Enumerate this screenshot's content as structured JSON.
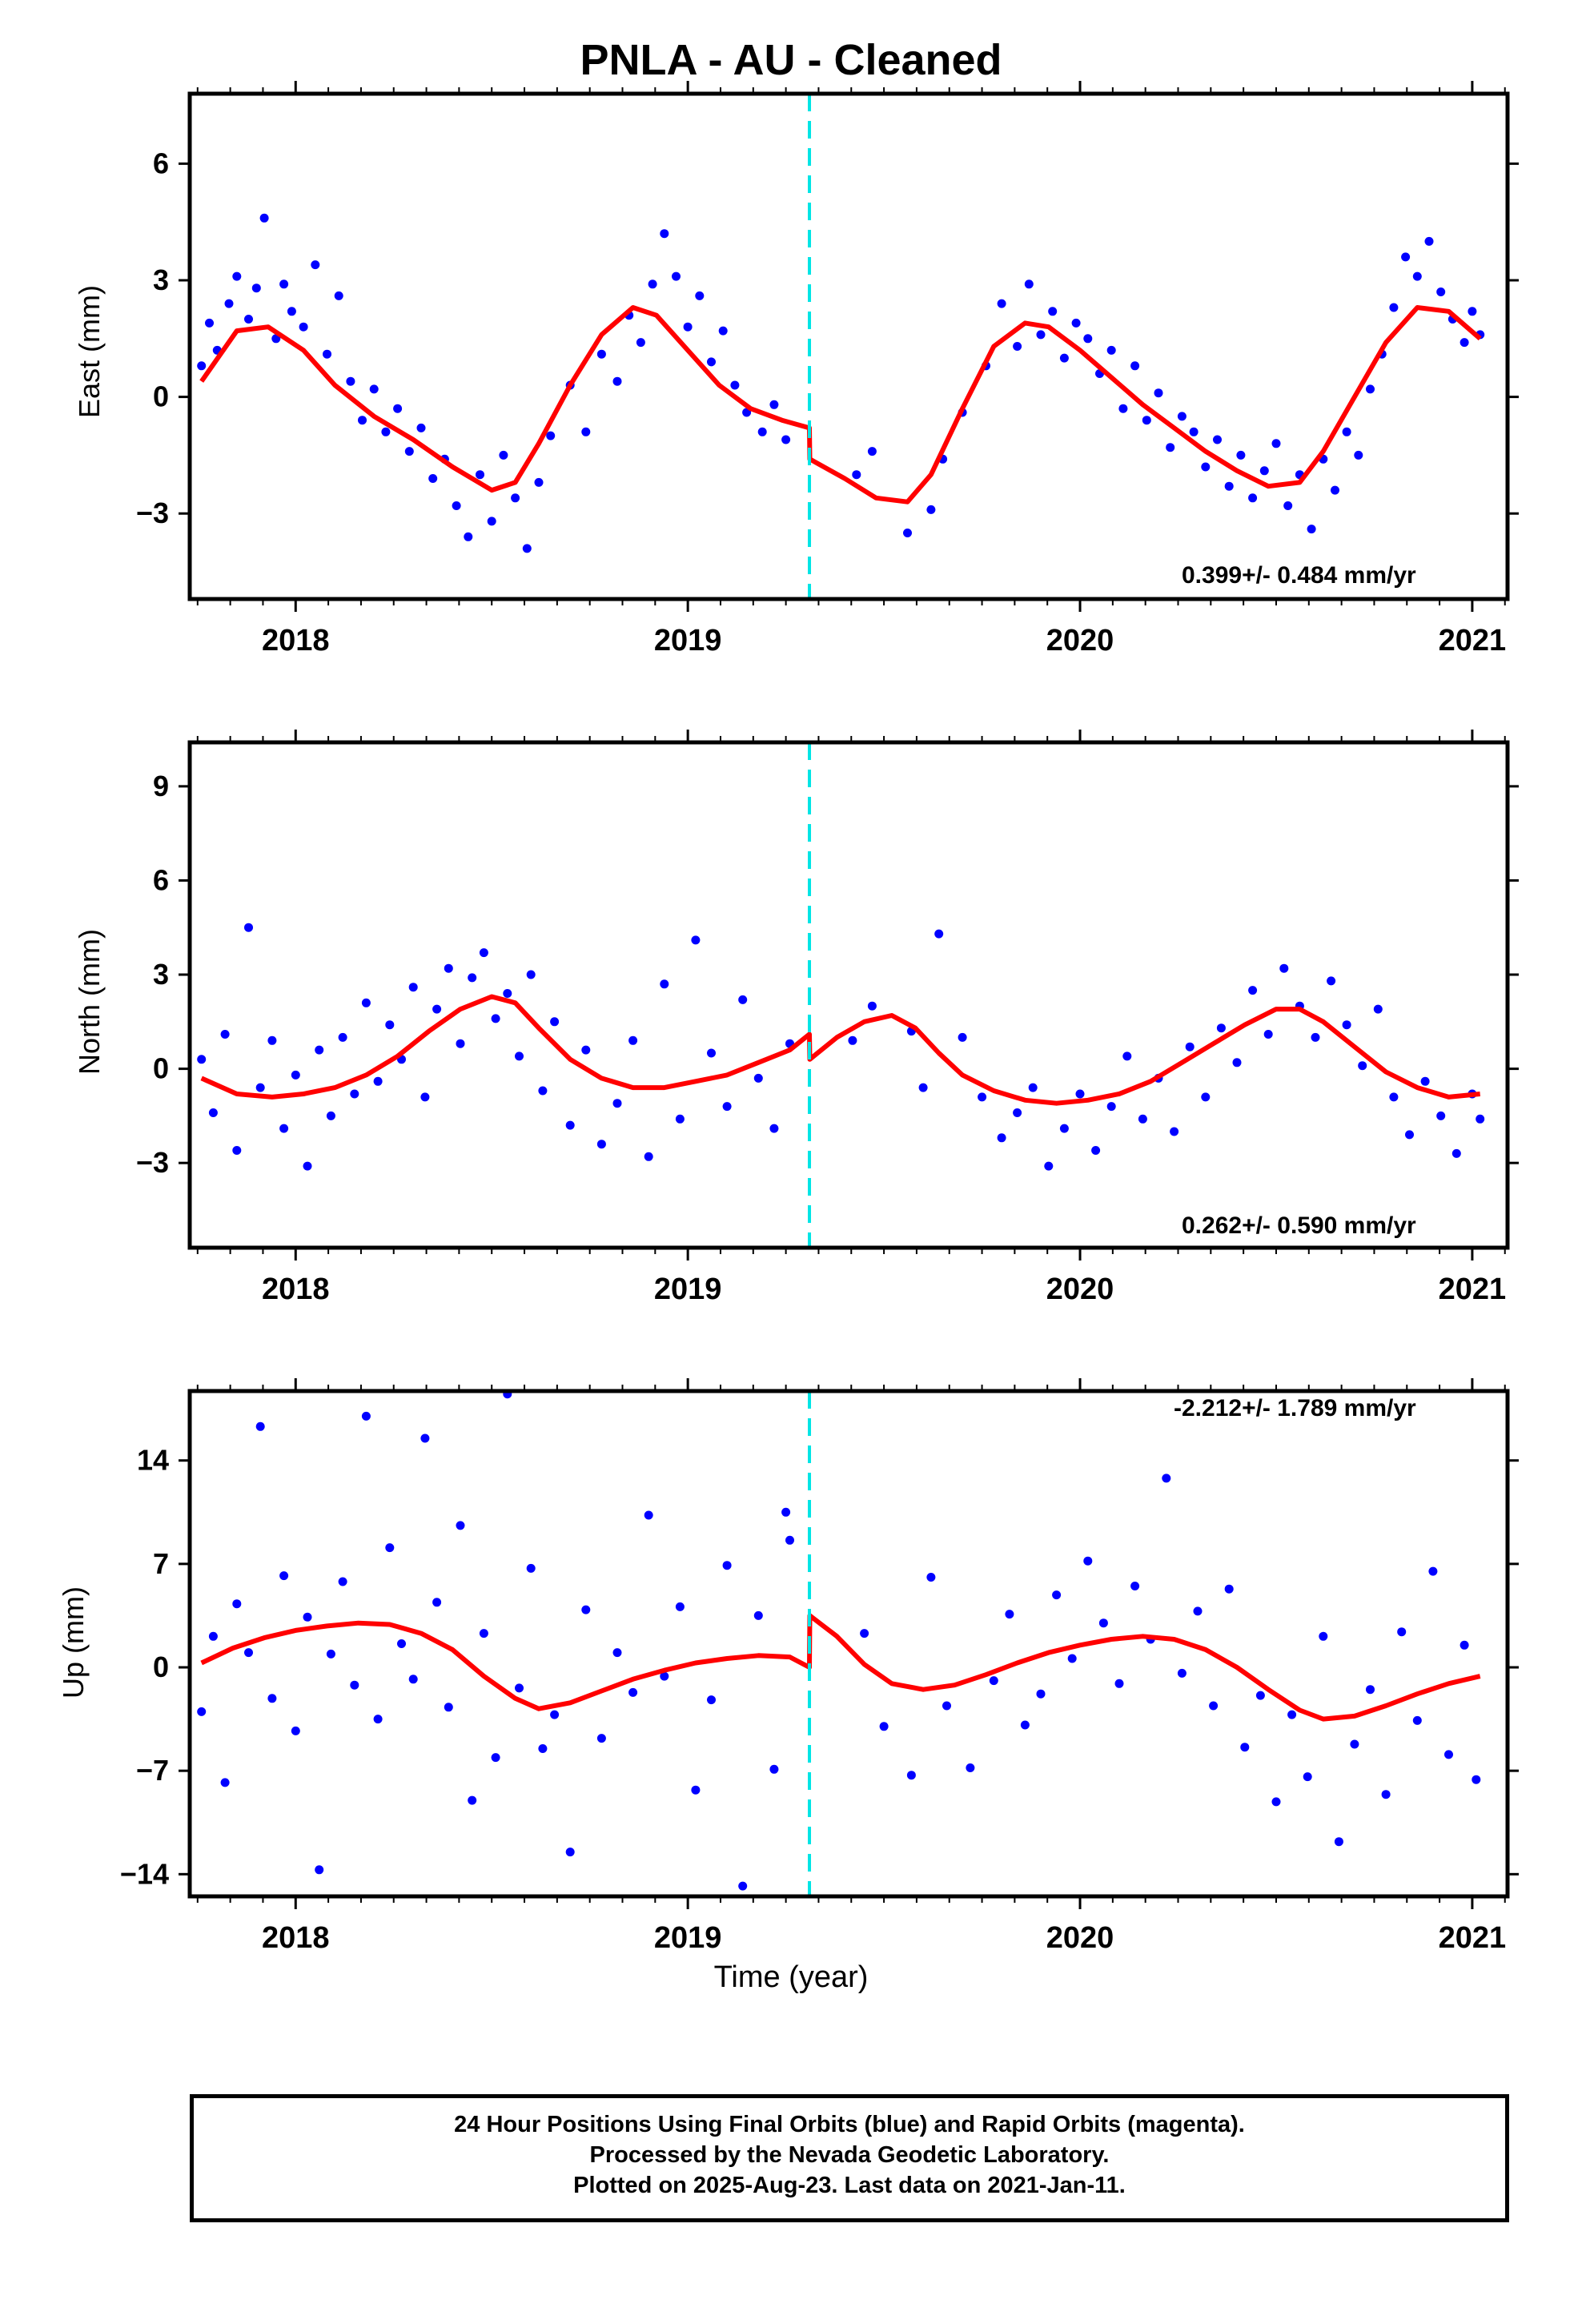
{
  "title": "PNLA  - AU - Cleaned",
  "xlabel": "Time (year)",
  "footer": {
    "line1": "24 Hour Positions Using Final Orbits (blue) and Rapid Orbits (magenta).",
    "line2": "Processed by the Nevada Geodetic Laboratory.",
    "line3": "Plotted on 2025-Aug-23. Last data on 2021-Jan-11."
  },
  "colors": {
    "final_orbits": "#0000ff",
    "model": "#ff0000",
    "equipment_change": "#00e5e5",
    "frame": "#000000"
  },
  "chart_data": [
    {
      "type": "scatter",
      "component": "east",
      "ylabel": "East (mm)",
      "rate_text": "0.399+/- 0.484 mm/yr",
      "rate_position": "bottom-right",
      "xlim": [
        2017.73,
        2021.09
      ],
      "ylim": [
        -5.2,
        7.8
      ],
      "yticks": [
        -3,
        0,
        3,
        6
      ],
      "ytick_labels": [
        "−3",
        "0",
        "3",
        "6"
      ],
      "xticks": [
        2018,
        2019,
        2020,
        2021
      ],
      "xtick_labels": [
        "2018",
        "2019",
        "2020",
        "2021"
      ],
      "break_epoch": 2019.31,
      "grid": false,
      "series": [
        {
          "name": "Final Orbits",
          "color": "#0000ff",
          "marker": "dot",
          "x": [
            2017.76,
            2017.78,
            2017.8,
            2017.83,
            2017.85,
            2017.88,
            2017.9,
            2017.92,
            2017.95,
            2017.97,
            2017.99,
            2018.02,
            2018.05,
            2018.08,
            2018.11,
            2018.14,
            2018.17,
            2018.2,
            2018.23,
            2018.26,
            2018.29,
            2018.32,
            2018.35,
            2018.38,
            2018.41,
            2018.44,
            2018.47,
            2018.5,
            2018.53,
            2018.56,
            2018.59,
            2018.62,
            2018.65,
            2018.7,
            2018.74,
            2018.78,
            2018.82,
            2018.85,
            2018.88,
            2018.91,
            2018.94,
            2018.97,
            2019.0,
            2019.03,
            2019.06,
            2019.09,
            2019.12,
            2019.15,
            2019.19,
            2019.22,
            2019.25,
            2019.43,
            2019.47,
            2019.56,
            2019.62,
            2019.65,
            2019.7,
            2019.76,
            2019.8,
            2019.84,
            2019.87,
            2019.9,
            2019.93,
            2019.96,
            2019.99,
            2020.02,
            2020.05,
            2020.08,
            2020.11,
            2020.14,
            2020.17,
            2020.2,
            2020.23,
            2020.26,
            2020.29,
            2020.32,
            2020.35,
            2020.38,
            2020.41,
            2020.44,
            2020.47,
            2020.5,
            2020.53,
            2020.56,
            2020.59,
            2020.62,
            2020.65,
            2020.68,
            2020.71,
            2020.74,
            2020.77,
            2020.8,
            2020.83,
            2020.86,
            2020.89,
            2020.92,
            2020.95,
            2020.98,
            2021.0,
            2021.02
          ],
          "y": [
            0.8,
            1.9,
            1.2,
            2.4,
            3.1,
            2.0,
            2.8,
            4.6,
            1.5,
            2.9,
            2.2,
            1.8,
            3.4,
            1.1,
            2.6,
            0.4,
            -0.6,
            0.2,
            -0.9,
            -0.3,
            -1.4,
            -0.8,
            -2.1,
            -1.6,
            -2.8,
            -3.6,
            -2.0,
            -3.2,
            -1.5,
            -2.6,
            -3.9,
            -2.2,
            -1.0,
            0.3,
            -0.9,
            1.1,
            0.4,
            2.1,
            1.4,
            2.9,
            4.2,
            3.1,
            1.8,
            2.6,
            0.9,
            1.7,
            0.3,
            -0.4,
            -0.9,
            -0.2,
            -1.1,
            -2.0,
            -1.4,
            -3.5,
            -2.9,
            -1.6,
            -0.4,
            0.8,
            2.4,
            1.3,
            2.9,
            1.6,
            2.2,
            1.0,
            1.9,
            1.5,
            0.6,
            1.2,
            -0.3,
            0.8,
            -0.6,
            0.1,
            -1.3,
            -0.5,
            -0.9,
            -1.8,
            -1.1,
            -2.3,
            -1.5,
            -2.6,
            -1.9,
            -1.2,
            -2.8,
            -2.0,
            -3.4,
            -1.6,
            -2.4,
            -0.9,
            -1.5,
            0.2,
            1.1,
            2.3,
            3.6,
            3.1,
            4.0,
            2.7,
            2.0,
            1.4,
            2.2,
            1.6
          ]
        }
      ],
      "model": {
        "name": "Model",
        "color": "#ff0000",
        "x": [
          2017.76,
          2017.85,
          2017.93,
          2018.02,
          2018.1,
          2018.2,
          2018.3,
          2018.4,
          2018.5,
          2018.56,
          2018.62,
          2018.7,
          2018.78,
          2018.86,
          2018.92,
          2019.0,
          2019.08,
          2019.16,
          2019.24,
          2019.31,
          2019.311,
          2019.4,
          2019.48,
          2019.56,
          2019.62,
          2019.7,
          2019.78,
          2019.86,
          2019.92,
          2020.0,
          2020.08,
          2020.16,
          2020.24,
          2020.32,
          2020.4,
          2020.48,
          2020.56,
          2020.62,
          2020.7,
          2020.78,
          2020.86,
          2020.94,
          2021.02
        ],
        "y": [
          0.4,
          1.7,
          1.8,
          1.2,
          0.3,
          -0.5,
          -1.1,
          -1.8,
          -2.4,
          -2.2,
          -1.2,
          0.3,
          1.6,
          2.3,
          2.1,
          1.2,
          0.3,
          -0.3,
          -0.6,
          -0.8,
          -1.6,
          -2.1,
          -2.6,
          -2.7,
          -2.0,
          -0.3,
          1.3,
          1.9,
          1.8,
          1.2,
          0.5,
          -0.2,
          -0.8,
          -1.4,
          -1.9,
          -2.3,
          -2.2,
          -1.4,
          0.0,
          1.4,
          2.3,
          2.2,
          1.5
        ]
      }
    },
    {
      "type": "scatter",
      "component": "north",
      "ylabel": "North (mm)",
      "rate_text": "0.262+/- 0.590 mm/yr",
      "rate_position": "bottom-right",
      "xlim": [
        2017.73,
        2021.09
      ],
      "ylim": [
        -5.7,
        10.4
      ],
      "yticks": [
        -3,
        0,
        3,
        6,
        9
      ],
      "ytick_labels": [
        "−3",
        "0",
        "3",
        "6",
        "9"
      ],
      "xticks": [
        2018,
        2019,
        2020,
        2021
      ],
      "xtick_labels": [
        "2018",
        "2019",
        "2020",
        "2021"
      ],
      "break_epoch": 2019.31,
      "grid": false,
      "series": [
        {
          "name": "Final Orbits",
          "color": "#0000ff",
          "marker": "dot",
          "x": [
            2017.76,
            2017.79,
            2017.82,
            2017.85,
            2017.88,
            2017.91,
            2017.94,
            2017.97,
            2018.0,
            2018.03,
            2018.06,
            2018.09,
            2018.12,
            2018.15,
            2018.18,
            2018.21,
            2018.24,
            2018.27,
            2018.3,
            2018.33,
            2018.36,
            2018.39,
            2018.42,
            2018.45,
            2018.48,
            2018.51,
            2018.54,
            2018.57,
            2018.6,
            2018.63,
            2018.66,
            2018.7,
            2018.74,
            2018.78,
            2018.82,
            2018.86,
            2018.9,
            2018.94,
            2018.98,
            2019.02,
            2019.06,
            2019.1,
            2019.14,
            2019.18,
            2019.22,
            2019.26,
            2019.42,
            2019.47,
            2019.57,
            2019.6,
            2019.64,
            2019.7,
            2019.75,
            2019.8,
            2019.84,
            2019.88,
            2019.92,
            2019.96,
            2020.0,
            2020.04,
            2020.08,
            2020.12,
            2020.16,
            2020.2,
            2020.24,
            2020.28,
            2020.32,
            2020.36,
            2020.4,
            2020.44,
            2020.48,
            2020.52,
            2020.56,
            2020.6,
            2020.64,
            2020.68,
            2020.72,
            2020.76,
            2020.8,
            2020.84,
            2020.88,
            2020.92,
            2020.96,
            2021.0,
            2021.02
          ],
          "y": [
            0.3,
            -1.4,
            1.1,
            -2.6,
            4.5,
            -0.6,
            0.9,
            -1.9,
            -0.2,
            -3.1,
            0.6,
            -1.5,
            1.0,
            -0.8,
            2.1,
            -0.4,
            1.4,
            0.3,
            2.6,
            -0.9,
            1.9,
            3.2,
            0.8,
            2.9,
            3.7,
            1.6,
            2.4,
            0.4,
            3.0,
            -0.7,
            1.5,
            -1.8,
            0.6,
            -2.4,
            -1.1,
            0.9,
            -2.8,
            2.7,
            -1.6,
            4.1,
            0.5,
            -1.2,
            2.2,
            -0.3,
            -1.9,
            0.8,
            0.9,
            2.0,
            1.2,
            -0.6,
            4.3,
            1.0,
            -0.9,
            -2.2,
            -1.4,
            -0.6,
            -3.1,
            -1.9,
            -0.8,
            -2.6,
            -1.2,
            0.4,
            -1.6,
            -0.3,
            -2.0,
            0.7,
            -0.9,
            1.3,
            0.2,
            2.5,
            1.1,
            3.2,
            2.0,
            1.0,
            2.8,
            1.4,
            0.1,
            1.9,
            -0.9,
            -2.1,
            -0.4,
            -1.5,
            -2.7,
            -0.8,
            -1.6
          ]
        }
      ],
      "model": {
        "name": "Model",
        "color": "#ff0000",
        "x": [
          2017.76,
          2017.85,
          2017.94,
          2018.02,
          2018.1,
          2018.18,
          2018.26,
          2018.34,
          2018.42,
          2018.5,
          2018.56,
          2018.62,
          2018.7,
          2018.78,
          2018.86,
          2018.94,
          2019.02,
          2019.1,
          2019.18,
          2019.26,
          2019.31,
          2019.311,
          2019.38,
          2019.45,
          2019.52,
          2019.58,
          2019.64,
          2019.7,
          2019.78,
          2019.86,
          2019.94,
          2020.02,
          2020.1,
          2020.18,
          2020.26,
          2020.34,
          2020.42,
          2020.5,
          2020.56,
          2020.62,
          2020.7,
          2020.78,
          2020.86,
          2020.94,
          2021.02
        ],
        "y": [
          -0.3,
          -0.8,
          -0.9,
          -0.8,
          -0.6,
          -0.2,
          0.4,
          1.2,
          1.9,
          2.3,
          2.1,
          1.3,
          0.3,
          -0.3,
          -0.6,
          -0.6,
          -0.4,
          -0.2,
          0.2,
          0.6,
          1.1,
          0.3,
          1.0,
          1.5,
          1.7,
          1.3,
          0.5,
          -0.2,
          -0.7,
          -1.0,
          -1.1,
          -1.0,
          -0.8,
          -0.4,
          0.2,
          0.8,
          1.4,
          1.9,
          1.9,
          1.5,
          0.7,
          -0.1,
          -0.6,
          -0.9,
          -0.8
        ]
      }
    },
    {
      "type": "scatter",
      "component": "up",
      "ylabel": "Up (mm)",
      "rate_text": "-2.212+/- 1.789 mm/yr",
      "rate_position": "top-right",
      "xlim": [
        2017.73,
        2021.09
      ],
      "ylim": [
        -15.5,
        18.7
      ],
      "yticks": [
        -14,
        -7,
        0,
        7,
        14
      ],
      "ytick_labels": [
        "−14",
        "−7",
        "0",
        "7",
        "14"
      ],
      "xticks": [
        2018,
        2019,
        2020,
        2021
      ],
      "xtick_labels": [
        "2018",
        "2019",
        "2020",
        "2021"
      ],
      "break_epoch": 2019.31,
      "grid": false,
      "series": [
        {
          "name": "Final Orbits",
          "color": "#0000ff",
          "marker": "dot",
          "x": [
            2017.76,
            2017.79,
            2017.82,
            2017.85,
            2017.88,
            2017.91,
            2017.94,
            2017.97,
            2018.0,
            2018.03,
            2018.06,
            2018.09,
            2018.12,
            2018.15,
            2018.18,
            2018.21,
            2018.24,
            2018.27,
            2018.3,
            2018.33,
            2018.36,
            2018.39,
            2018.42,
            2018.45,
            2018.48,
            2018.51,
            2018.54,
            2018.57,
            2018.6,
            2018.63,
            2018.66,
            2018.7,
            2018.74,
            2018.78,
            2018.82,
            2018.86,
            2018.9,
            2018.94,
            2018.98,
            2019.02,
            2019.06,
            2019.1,
            2019.14,
            2019.18,
            2019.22,
            2019.25,
            2019.26,
            2019.45,
            2019.5,
            2019.57,
            2019.62,
            2019.66,
            2019.72,
            2019.78,
            2019.82,
            2019.86,
            2019.9,
            2019.94,
            2019.98,
            2020.02,
            2020.06,
            2020.1,
            2020.14,
            2020.18,
            2020.22,
            2020.26,
            2020.3,
            2020.34,
            2020.38,
            2020.42,
            2020.46,
            2020.5,
            2020.54,
            2020.58,
            2020.62,
            2020.66,
            2020.7,
            2020.74,
            2020.78,
            2020.82,
            2020.86,
            2020.9,
            2020.94,
            2020.98,
            2021.01
          ],
          "y": [
            -3.0,
            2.1,
            -7.8,
            4.3,
            1.0,
            16.3,
            -2.1,
            6.2,
            -4.3,
            3.4,
            -13.7,
            0.9,
            5.8,
            -1.2,
            17.0,
            -3.5,
            8.1,
            1.6,
            -0.8,
            15.5,
            4.4,
            -2.7,
            9.6,
            -9.0,
            2.3,
            -6.1,
            18.5,
            -1.4,
            6.7,
            -5.5,
            -3.2,
            -12.5,
            3.9,
            -4.8,
            1.0,
            -1.7,
            10.3,
            -0.6,
            4.1,
            -8.3,
            -2.2,
            6.9,
            -14.8,
            3.5,
            -6.9,
            10.5,
            8.6,
            2.3,
            -4.0,
            -7.3,
            6.1,
            -2.6,
            -6.8,
            -0.9,
            3.6,
            -3.9,
            -1.8,
            4.9,
            0.6,
            7.2,
            3.0,
            -1.1,
            5.5,
            1.9,
            12.8,
            -0.4,
            3.8,
            -2.6,
            5.3,
            -5.4,
            -1.9,
            -9.1,
            -3.2,
            -7.4,
            2.1,
            -11.8,
            -5.2,
            -1.5,
            -8.6,
            2.4,
            -3.6,
            6.5,
            -5.9,
            1.5,
            -7.6
          ]
        }
      ],
      "model": {
        "name": "Model",
        "color": "#ff0000",
        "x": [
          2017.76,
          2017.84,
          2017.92,
          2018.0,
          2018.08,
          2018.16,
          2018.24,
          2018.32,
          2018.4,
          2018.48,
          2018.56,
          2018.62,
          2018.7,
          2018.78,
          2018.86,
          2018.94,
          2019.02,
          2019.1,
          2019.18,
          2019.26,
          2019.31,
          2019.311,
          2019.38,
          2019.45,
          2019.52,
          2019.6,
          2019.68,
          2019.76,
          2019.84,
          2019.92,
          2020.0,
          2020.08,
          2020.16,
          2020.24,
          2020.32,
          2020.4,
          2020.48,
          2020.56,
          2020.62,
          2020.7,
          2020.78,
          2020.86,
          2020.94,
          2021.02
        ],
        "y": [
          0.3,
          1.3,
          2.0,
          2.5,
          2.8,
          3.0,
          2.9,
          2.3,
          1.2,
          -0.6,
          -2.1,
          -2.8,
          -2.4,
          -1.6,
          -0.8,
          -0.2,
          0.3,
          0.6,
          0.8,
          0.7,
          0.0,
          3.5,
          2.1,
          0.2,
          -1.1,
          -1.5,
          -1.2,
          -0.5,
          0.3,
          1.0,
          1.5,
          1.9,
          2.1,
          1.9,
          1.2,
          0.0,
          -1.5,
          -2.9,
          -3.5,
          -3.3,
          -2.6,
          -1.8,
          -1.1,
          -0.6
        ]
      }
    }
  ]
}
